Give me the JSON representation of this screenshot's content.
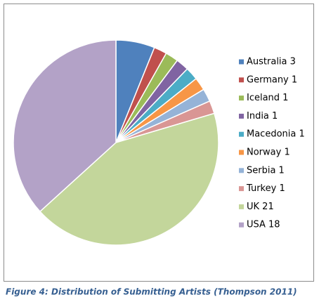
{
  "chart_data": {
    "type": "pie",
    "categories": [
      "Australia 3",
      "Germany 1",
      "Iceland 1",
      "India 1",
      "Macedonia 1",
      "Norway 1",
      "Serbia 1",
      "Turkey 1",
      "UK 21",
      "USA 18"
    ],
    "values": [
      3,
      1,
      1,
      1,
      1,
      1,
      1,
      1,
      21,
      18
    ],
    "colors": [
      "#4f81bd",
      "#c0504d",
      "#9bbb59",
      "#8064a2",
      "#4bacc6",
      "#f79646",
      "#95b3d7",
      "#d99694",
      "#c3d69b",
      "#b3a2c7"
    ],
    "legend": "right",
    "caption": "Figure 4: Distribution of Submitting Artists (Thompson 2011)"
  }
}
